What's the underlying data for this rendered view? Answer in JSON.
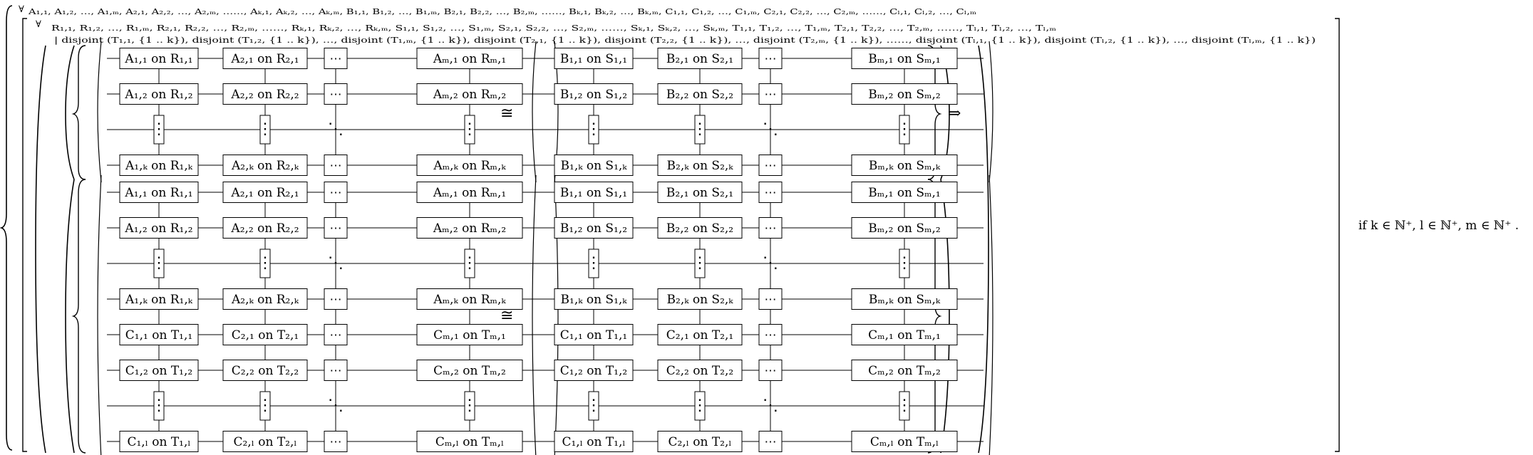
{
  "formula": {
    "outer_quantifier": "∀",
    "outer_vars": "A₁,₁, A₁,₂, …, A₁,ₘ, A₂,₁, A₂,₂, …, A₂,ₘ, ……, Aₖ,₁, Aₖ,₂, …, Aₖ,ₘ, B₁,₁, B₁,₂, …, B₁,ₘ, B₂,₁, B₂,₂, …, B₂,ₘ, ……, Bₖ,₁, Bₖ,₂, …, Bₖ,ₘ, C₁,₁, C₁,₂, …, C₁,ₘ, C₂,₁, C₂,₂, …, C₂,ₘ, ……, Cₗ,₁, Cₗ,₂, …, Cₗ,ₘ",
    "inner_quantifier": "∀",
    "inner_vars": "R₁,₁, R₁,₂, …, R₁,ₘ, R₂,₁, R₂,₂, …, R₂,ₘ, ……, Rₖ,₁, Rₖ,₂, …, Rₖ,ₘ, S₁,₁, S₁,₂, …, S₁,ₘ, S₂,₁, S₂,₂, …, S₂,ₘ, ……, Sₖ,₁, Sₖ,₂, …, Sₖ,ₘ, T₁,₁, T₁,₂, …, T₁,ₘ, T₂,₁, T₂,₂, …, T₂,ₘ, ……, Tₗ,₁, Tₗ,₂, …, Tₗ,ₘ",
    "inner_condition": "| disjoint (T₁,₁, {1 .. k}), disjoint (T₁,₂, {1 .. k}), …, disjoint (T₁,ₘ, {1 .. k}), disjoint (T₂,₁, {1 .. k}), disjoint (T₂,₂, {1 .. k}), …, disjoint (T₂,ₘ, {1 .. k}), ……, disjoint (Tₗ,₁, {1 .. k}), disjoint (Tₗ,₂, {1 .. k}), …, disjoint (Tₗ,ₘ, {1 .. k})",
    "iso_symbol": "≅",
    "implies_symbol": "⇒",
    "side_condition": "if k ∈ ℕ⁺, l ∈ ℕ⁺, m ∈ ℕ⁺ ."
  },
  "grids": {
    "top_left": [
      [
        "A₁,₁ on R₁,₁",
        "A₂,₁ on R₂,₁",
        "⋯",
        "Aₘ,₁ on Rₘ,₁"
      ],
      [
        "A₁,₂ on R₁,₂",
        "A₂,₂ on R₂,₂",
        "⋯",
        "Aₘ,₂ on Rₘ,₂"
      ],
      [
        "⋮",
        "⋮",
        "⋱",
        "⋮"
      ],
      [
        "A₁,ₖ on R₁,ₖ",
        "A₂,ₖ on R₂,ₖ",
        "⋯",
        "Aₘ,ₖ on Rₘ,ₖ"
      ]
    ],
    "top_right": [
      [
        "B₁,₁ on S₁,₁",
        "B₂,₁ on S₂,₁",
        "⋯",
        "Bₘ,₁ on Sₘ,₁"
      ],
      [
        "B₁,₂ on S₁,₂",
        "B₂,₂ on S₂,₂",
        "⋯",
        "Bₘ,₂ on Sₘ,₂"
      ],
      [
        "⋮",
        "⋮",
        "⋱",
        "⋮"
      ],
      [
        "B₁,ₖ on S₁,ₖ",
        "B₂,ₖ on S₂,ₖ",
        "⋯",
        "Bₘ,ₖ on Sₘ,ₖ"
      ]
    ],
    "bottom_left": [
      [
        "A₁,₁ on R₁,₁",
        "A₂,₁ on R₂,₁",
        "⋯",
        "Aₘ,₁ on Rₘ,₁"
      ],
      [
        "A₁,₂ on R₁,₂",
        "A₂,₂ on R₂,₂",
        "⋯",
        "Aₘ,₂ on Rₘ,₂"
      ],
      [
        "⋮",
        "⋮",
        "⋱",
        "⋮"
      ],
      [
        "A₁,ₖ on R₁,ₖ",
        "A₂,ₖ on R₂,ₖ",
        "⋯",
        "Aₘ,ₖ on Rₘ,ₖ"
      ],
      [
        "C₁,₁ on T₁,₁",
        "C₂,₁ on T₂,₁",
        "⋯",
        "Cₘ,₁ on Tₘ,₁"
      ],
      [
        "C₁,₂ on T₁,₂",
        "C₂,₂ on T₂,₂",
        "⋯",
        "Cₘ,₂ on Tₘ,₂"
      ],
      [
        "⋮",
        "⋮",
        "⋱",
        "⋮"
      ],
      [
        "C₁,ₗ on T₁,ₗ",
        "C₂,ₗ on T₂,ₗ",
        "⋯",
        "Cₘ,ₗ on Tₘ,ₗ"
      ]
    ],
    "bottom_right": [
      [
        "B₁,₁ on S₁,₁",
        "B₂,₁ on S₂,₁",
        "⋯",
        "Bₘ,₁ on Sₘ,₁"
      ],
      [
        "B₁,₂ on S₁,₂",
        "B₂,₂ on S₂,₂",
        "⋯",
        "Bₘ,₂ on Sₘ,₂"
      ],
      [
        "⋮",
        "⋮",
        "⋱",
        "⋮"
      ],
      [
        "B₁,ₖ on S₁,ₖ",
        "B₂,ₖ on S₂,ₖ",
        "⋯",
        "Bₘ,ₖ on Sₘ,ₖ"
      ],
      [
        "C₁,₁ on T₁,₁",
        "C₂,₁ on T₂,₁",
        "⋯",
        "Cₘ,₁ on Tₘ,₁"
      ],
      [
        "C₁,₂ on T₁,₂",
        "C₂,₂ on T₂,₂",
        "⋯",
        "Cₘ,₂ on Tₘ,₂"
      ],
      [
        "⋮",
        "⋮",
        "⋱",
        "⋮"
      ],
      [
        "C₁,ₗ on T₁,ₗ",
        "C₂,ₗ on T₂,ₗ",
        "⋯",
        "Cₘ,ₗ on Tₘ,ₗ"
      ]
    ]
  }
}
